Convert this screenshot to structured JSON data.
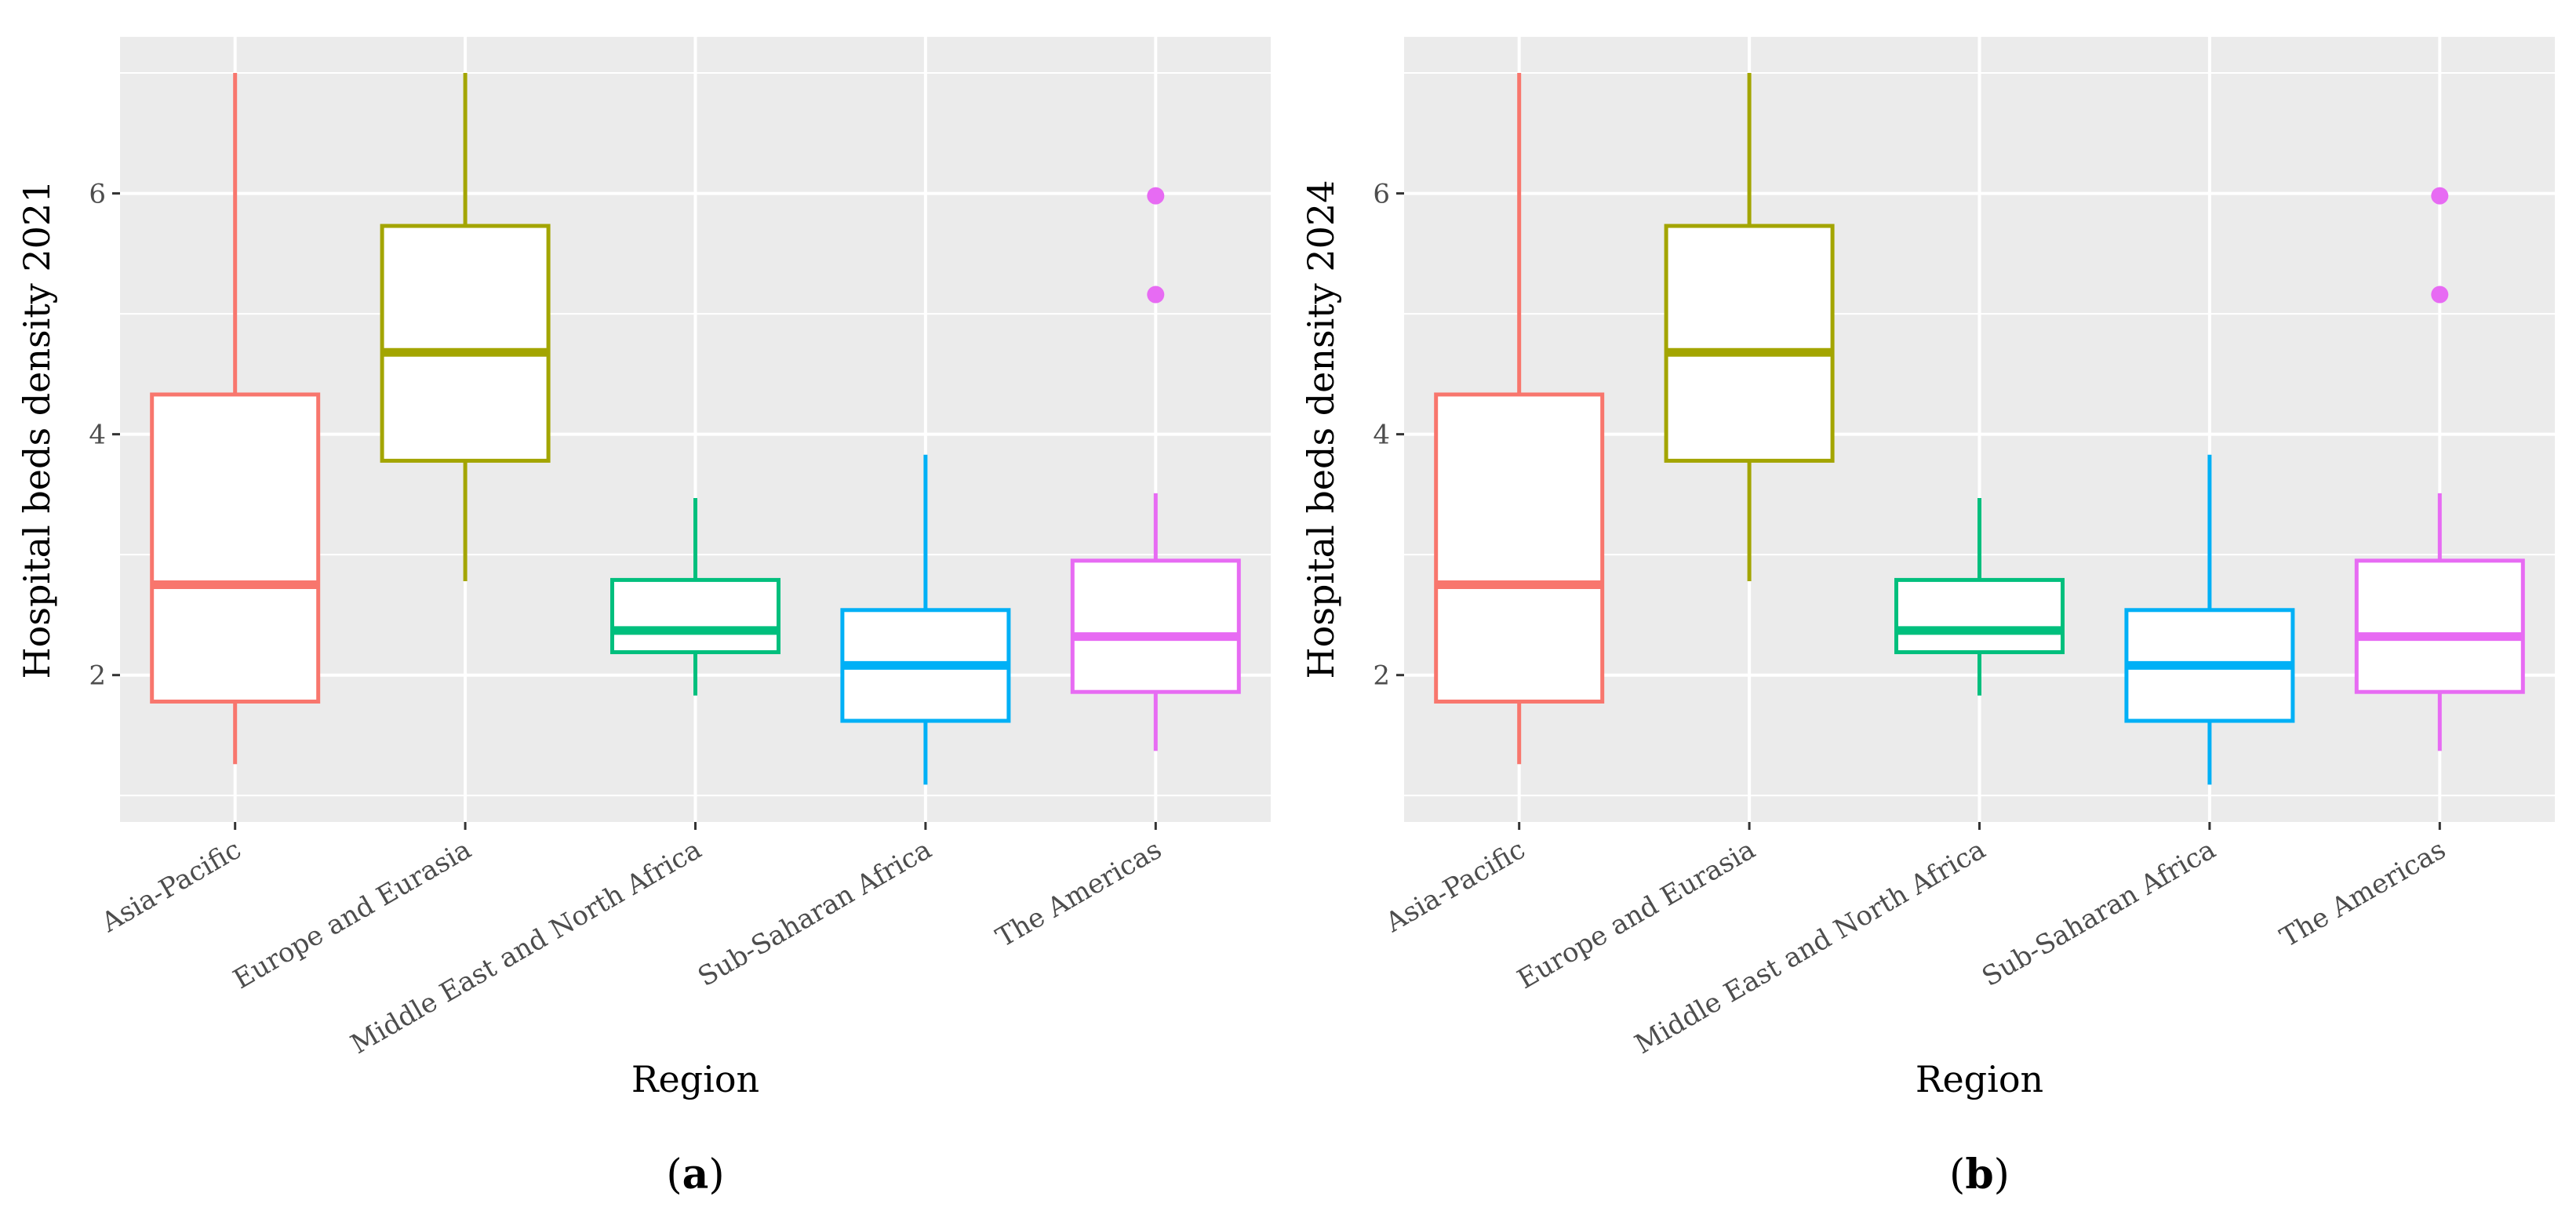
{
  "chart_data": [
    {
      "type": "box",
      "panel_label": "a",
      "xlabel": "Region",
      "ylabel": "Hospital beds density 2021",
      "ylim": [
        0.78,
        7.3
      ],
      "yticks": [
        2,
        4,
        6
      ],
      "grid": true,
      "categories": [
        "Asia-Pacific",
        "Europe and Eurasia",
        "Middle East and North Africa",
        "Sub-Saharan Africa",
        "The Americas"
      ],
      "colors": [
        "#F8766D",
        "#A3A500",
        "#00BF7D",
        "#00B0F6",
        "#E76BF3"
      ],
      "boxes": [
        {
          "min": 1.26,
          "q1": 1.78,
          "median": 2.75,
          "q3": 4.33,
          "max": 7.0,
          "outliers": []
        },
        {
          "min": 2.78,
          "q1": 3.78,
          "median": 4.68,
          "q3": 5.73,
          "max": 7.0,
          "outliers": []
        },
        {
          "min": 1.83,
          "q1": 2.19,
          "median": 2.37,
          "q3": 2.79,
          "max": 3.47,
          "outliers": []
        },
        {
          "min": 1.09,
          "q1": 1.62,
          "median": 2.08,
          "q3": 2.54,
          "max": 3.83,
          "outliers": []
        },
        {
          "min": 1.37,
          "q1": 1.86,
          "median": 2.32,
          "q3": 2.95,
          "max": 3.51,
          "outliers": [
            5.16,
            5.98
          ]
        }
      ]
    },
    {
      "type": "box",
      "panel_label": "b",
      "xlabel": "Region",
      "ylabel": "Hospital beds density 2024",
      "ylim": [
        0.78,
        7.3
      ],
      "yticks": [
        2,
        4,
        6
      ],
      "grid": true,
      "categories": [
        "Asia-Pacific",
        "Europe and Eurasia",
        "Middle East and North Africa",
        "Sub-Saharan Africa",
        "The Americas"
      ],
      "colors": [
        "#F8766D",
        "#A3A500",
        "#00BF7D",
        "#00B0F6",
        "#E76BF3"
      ],
      "boxes": [
        {
          "min": 1.26,
          "q1": 1.78,
          "median": 2.75,
          "q3": 4.33,
          "max": 7.0,
          "outliers": []
        },
        {
          "min": 2.78,
          "q1": 3.78,
          "median": 4.68,
          "q3": 5.73,
          "max": 7.0,
          "outliers": []
        },
        {
          "min": 1.83,
          "q1": 2.19,
          "median": 2.37,
          "q3": 2.79,
          "max": 3.47,
          "outliers": []
        },
        {
          "min": 1.09,
          "q1": 1.62,
          "median": 2.08,
          "q3": 2.54,
          "max": 3.83,
          "outliers": []
        },
        {
          "min": 1.37,
          "q1": 1.86,
          "median": 2.32,
          "q3": 2.95,
          "max": 3.51,
          "outliers": [
            5.16,
            5.98
          ]
        }
      ]
    }
  ]
}
